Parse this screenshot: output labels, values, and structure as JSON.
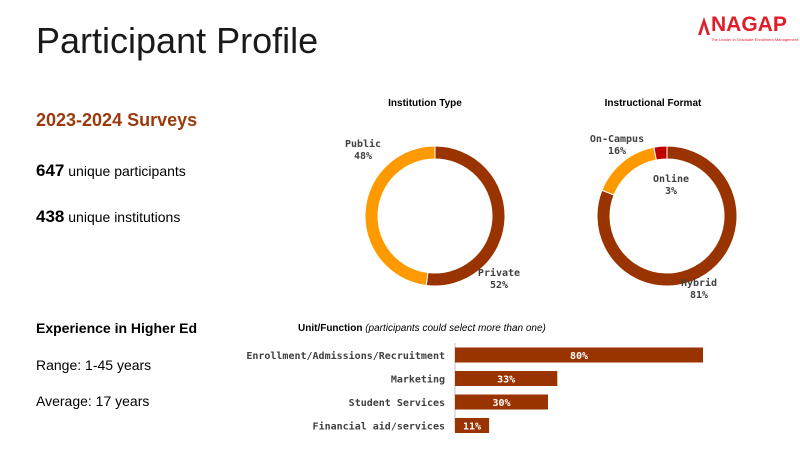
{
  "header": {
    "title": "Participant Profile",
    "logo_text": "NAGAP",
    "logo_tagline": "The Leader in Graduate Enrollment Management"
  },
  "summary": {
    "heading": "2023-2024 Surveys",
    "participants_value": "647",
    "participants_label": " unique participants",
    "institutions_value": "438",
    "institutions_label": " unique institutions"
  },
  "experience": {
    "title": "Experience in Higher Ed",
    "range": "Range: 1-45 years",
    "average": "Average: 17 years"
  },
  "colors": {
    "primary": "#993300",
    "secondary": "#ff9900",
    "accent": "#c00000",
    "heading": "#9b3a0d",
    "brand": "#e01e2a"
  },
  "chart_data": [
    {
      "type": "pie",
      "title": "Institution Type",
      "slices": [
        {
          "label": "Private",
          "value": 52,
          "display": "52%",
          "color": "#993300"
        },
        {
          "label": "Public",
          "value": 48,
          "display": "48%",
          "color": "#ff9900"
        }
      ]
    },
    {
      "type": "pie",
      "title": "Instructional Format",
      "slices": [
        {
          "label": "Hybrid",
          "value": 81,
          "display": "81%",
          "color": "#993300"
        },
        {
          "label": "On-Campus",
          "value": 16,
          "display": "16%",
          "color": "#ff9900"
        },
        {
          "label": "Online",
          "value": 3,
          "display": "3%",
          "color": "#c00000"
        }
      ]
    },
    {
      "type": "bar",
      "orientation": "horizontal",
      "title": "Unit/Function",
      "subtitle": "(participants could select more than one)",
      "categories": [
        "Enrollment/Admissions/Recruitment",
        "Marketing",
        "Student Services",
        "Financial aid/services"
      ],
      "values": [
        80,
        33,
        30,
        11
      ],
      "value_labels": [
        "80%",
        "33%",
        "30%",
        "11%"
      ],
      "xlim": [
        0,
        100
      ],
      "color": "#993300"
    }
  ]
}
